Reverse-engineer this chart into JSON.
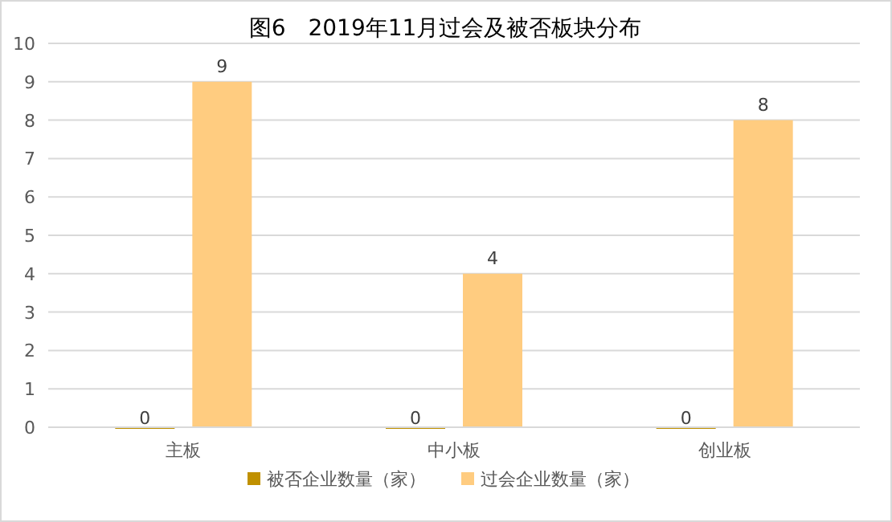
{
  "chart_data": {
    "type": "bar",
    "title": "图6　2019年11月过会及被否板块分布",
    "categories": [
      "主板",
      "中小板",
      "创业板"
    ],
    "series": [
      {
        "name": "被否企业数量（家）",
        "color": "#c09000",
        "values": [
          0,
          0,
          0
        ]
      },
      {
        "name": "过会企业数量（家）",
        "color": "#ffcc80",
        "values": [
          9,
          4,
          8
        ]
      }
    ],
    "ylim": [
      0,
      10
    ],
    "yticks": [
      0,
      1,
      2,
      3,
      4,
      5,
      6,
      7,
      8,
      9,
      10
    ],
    "grid": "y",
    "data_labels": true,
    "legend": "bottom"
  }
}
